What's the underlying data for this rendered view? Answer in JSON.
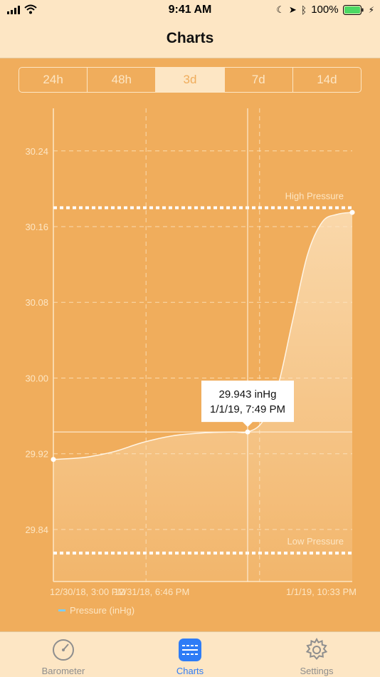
{
  "status_bar": {
    "time": "9:41 AM",
    "battery_percent": "100%",
    "icons": [
      "signal-icon",
      "wifi-icon",
      "moon-icon",
      "location-icon",
      "bluetooth-icon",
      "battery-icon",
      "charging-icon"
    ]
  },
  "nav": {
    "title": "Charts"
  },
  "segments": [
    {
      "label": "24h",
      "selected": false
    },
    {
      "label": "48h",
      "selected": false
    },
    {
      "label": "3d",
      "selected": true
    },
    {
      "label": "7d",
      "selected": false
    },
    {
      "label": "14d",
      "selected": false
    }
  ],
  "chart_data": {
    "type": "area",
    "ylim": [
      29.785,
      30.285
    ],
    "y_ticks": [
      "30.24",
      "30.16",
      "30.08",
      "30.00",
      "29.92",
      "29.84"
    ],
    "y_tick_values": [
      30.24,
      30.16,
      30.08,
      30.0,
      29.92,
      29.84
    ],
    "x_tick_labels": [
      "12/30/18, 3:00 PM",
      "12/31/18, 6:46 PM",
      "1/1/19, 10:33 PM"
    ],
    "x_tick_fractions": [
      0.0,
      0.31,
      1.0
    ],
    "series": [
      {
        "name": "Pressure (inHg)",
        "color": "#7fcdf0",
        "points": [
          [
            0.0,
            29.914
          ],
          [
            0.1,
            29.916
          ],
          [
            0.2,
            29.922
          ],
          [
            0.3,
            29.932
          ],
          [
            0.4,
            29.939
          ],
          [
            0.5,
            29.942
          ],
          [
            0.6,
            29.943
          ],
          [
            0.65,
            29.943
          ],
          [
            0.7,
            29.954
          ],
          [
            0.75,
            29.99
          ],
          [
            0.8,
            30.06
          ],
          [
            0.85,
            30.13
          ],
          [
            0.9,
            30.165
          ],
          [
            0.95,
            30.173
          ],
          [
            1.0,
            30.175
          ]
        ]
      }
    ],
    "high_pressure": {
      "label": "High Pressure",
      "value": 30.18
    },
    "low_pressure": {
      "label": "Low Pressure",
      "value": 29.815
    },
    "selected_point": {
      "x": 0.65,
      "y": 29.943,
      "value_label": "29.943 inHg",
      "time_label": "1/1/19, 7:49 PM"
    },
    "vertical_gridlines": [
      0.31,
      0.69
    ],
    "legend": {
      "label": "Pressure (inHg)",
      "color": "#7fcdf0",
      "position": "bottom-left"
    },
    "grid": true
  },
  "tabs": [
    {
      "label": "Barometer",
      "icon": "barometer-icon",
      "active": false
    },
    {
      "label": "Charts",
      "icon": "charts-icon",
      "active": true
    },
    {
      "label": "Settings",
      "icon": "gear-icon",
      "active": false
    }
  ],
  "colors": {
    "background": "#f0ad5c",
    "cream": "#fde6c4",
    "accent_blue": "#2e7cf6",
    "tab_inactive": "#8e8e8e"
  }
}
